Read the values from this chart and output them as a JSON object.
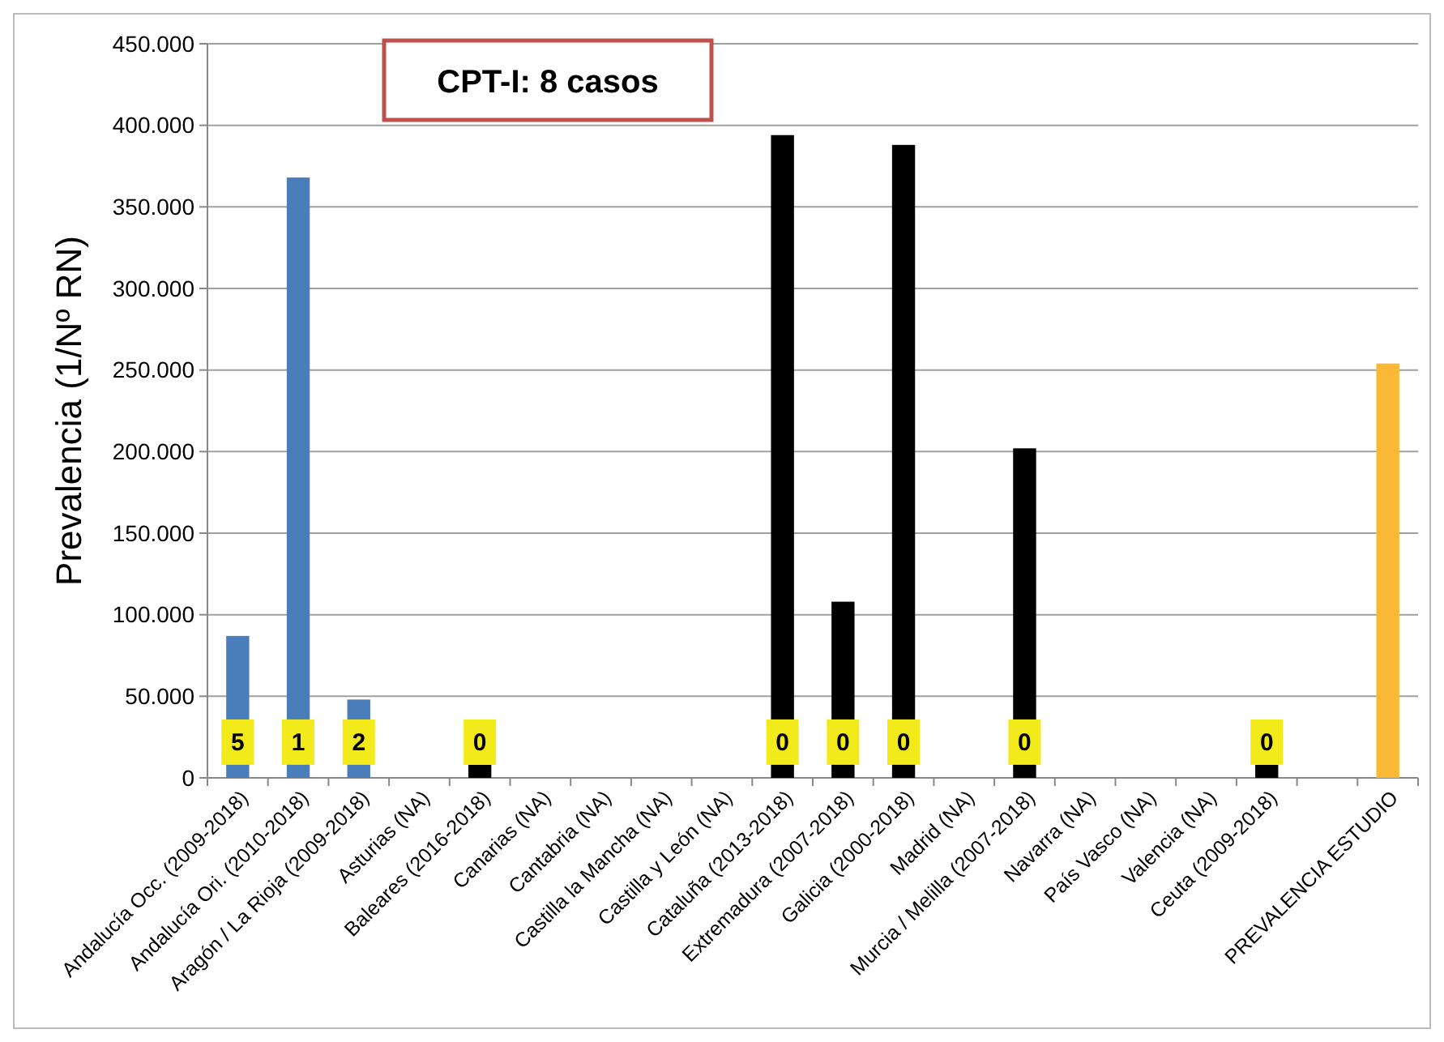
{
  "chart_data": {
    "type": "bar",
    "title": "CPT-I: 8 casos",
    "ylabel": "Prevalencia (1/Nº RN)",
    "categories": [
      "Andalucía Occ. (2009-2018)",
      "Andalucía Ori. (2010-2018)",
      "Aragón / La Rioja (2009-2018)",
      "Asturias (NA)",
      "Baleares (2016-2018)",
      "Canarias (NA)",
      "Cantabria (NA)",
      "Castilla la Mancha (NA)",
      "Castilla y León (NA)",
      "Cataluña (2013-2018)",
      "Extremadura (2007-2018)",
      "Galicia (2000-2018)",
      "Madrid (NA)",
      "Murcia / Melilla (2007-2018)",
      "Navarra (NA)",
      "País Vasco (NA)",
      "Valencia (NA)",
      "Ceuta (2009-2018)",
      null,
      "PREVALENCIA ESTUDIO"
    ],
    "values": [
      87000,
      368000,
      48000,
      null,
      8000,
      null,
      null,
      null,
      null,
      394000,
      108000,
      388000,
      null,
      202000,
      null,
      null,
      null,
      8000,
      null,
      254000
    ],
    "colors": [
      "#4a7ebb",
      "#4a7ebb",
      "#4a7ebb",
      null,
      "#000000",
      null,
      null,
      null,
      null,
      "#000000",
      "#000000",
      "#000000",
      null,
      "#000000",
      null,
      null,
      null,
      "#000000",
      null,
      "#f9b934"
    ],
    "ylim": [
      0,
      450000
    ],
    "yticks": [
      {
        "value": 0,
        "label": "0"
      },
      {
        "value": 50000,
        "label": "50.000"
      },
      {
        "value": 100000,
        "label": "100.000"
      },
      {
        "value": 150000,
        "label": "150.000"
      },
      {
        "value": 200000,
        "label": "200.000"
      },
      {
        "value": 250000,
        "label": "250.000"
      },
      {
        "value": 300000,
        "label": "300.000"
      },
      {
        "value": 350000,
        "label": "350.000"
      },
      {
        "value": 400000,
        "label": "400.000"
      },
      {
        "value": 450000,
        "label": "450.000"
      }
    ],
    "grid": "y",
    "annotations": [
      {
        "text": "5",
        "x": "Andalucía Occ. (2009-2018)",
        "y": 8000
      },
      {
        "text": "1",
        "x": "Andalucía Ori. (2010-2018)",
        "y": 8000
      },
      {
        "text": "2",
        "x": "Aragón / La Rioja (2009-2018)",
        "y": 8000
      },
      {
        "text": "0",
        "x": "Baleares (2016-2018)",
        "y": 8000
      },
      {
        "text": "0",
        "x": "Cataluña (2013-2018)",
        "y": 8000
      },
      {
        "text": "0",
        "x": "Extremadura (2007-2018)",
        "y": 8000
      },
      {
        "text": "0",
        "x": "Galicia (2000-2018)",
        "y": 8000
      },
      {
        "text": "0",
        "x": "Murcia / Melilla (2007-2018)",
        "y": 8000
      },
      {
        "text": "0",
        "x": "Ceuta (2009-2018)",
        "y": 8000
      }
    ]
  }
}
